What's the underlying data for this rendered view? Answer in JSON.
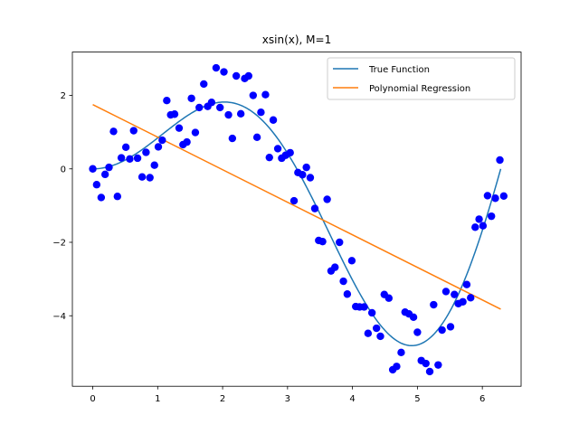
{
  "chart_data": {
    "type": "scatter",
    "title": "xsin(x), M=1",
    "xlabel": "",
    "ylabel": "",
    "xlim": [
      -0.314,
      6.597
    ],
    "ylim": [
      -5.92,
      3.18
    ],
    "xticks": [
      0,
      1,
      2,
      3,
      4,
      5,
      6
    ],
    "yticks": [
      -4,
      -2,
      0,
      2
    ],
    "grid": false,
    "legend_position": "top-right",
    "series": [
      {
        "name": "True Function",
        "type": "line",
        "color": "#1f77b4",
        "function": "x*sin(x)",
        "domain": [
          0,
          6.283
        ]
      },
      {
        "name": "Polynomial Regression",
        "type": "line",
        "color": "#ff7f0e",
        "x": [
          0,
          6.283
        ],
        "y": [
          1.75,
          -3.82
        ]
      },
      {
        "type": "scatter",
        "color": "#0000ff",
        "points": [
          [
            0.0,
            0.0
          ],
          [
            0.06,
            -0.43
          ],
          [
            0.13,
            -0.78
          ],
          [
            0.19,
            -0.15
          ],
          [
            0.25,
            0.04
          ],
          [
            0.32,
            1.02
          ],
          [
            0.38,
            -0.75
          ],
          [
            0.44,
            0.3
          ],
          [
            0.51,
            0.59
          ],
          [
            0.57,
            0.27
          ],
          [
            0.63,
            1.04
          ],
          [
            0.69,
            0.29
          ],
          [
            0.76,
            -0.22
          ],
          [
            0.82,
            0.45
          ],
          [
            0.88,
            -0.24
          ],
          [
            0.95,
            0.1
          ],
          [
            1.01,
            0.6
          ],
          [
            1.07,
            0.78
          ],
          [
            1.14,
            1.86
          ],
          [
            1.2,
            1.47
          ],
          [
            1.26,
            1.49
          ],
          [
            1.33,
            1.11
          ],
          [
            1.39,
            0.66
          ],
          [
            1.45,
            0.73
          ],
          [
            1.52,
            1.92
          ],
          [
            1.58,
            0.99
          ],
          [
            1.64,
            1.67
          ],
          [
            1.71,
            2.31
          ],
          [
            1.77,
            1.7
          ],
          [
            1.83,
            1.81
          ],
          [
            1.9,
            2.75
          ],
          [
            1.96,
            1.67
          ],
          [
            2.02,
            2.64
          ],
          [
            2.09,
            1.47
          ],
          [
            2.15,
            0.83
          ],
          [
            2.21,
            2.53
          ],
          [
            2.28,
            1.5
          ],
          [
            2.34,
            2.46
          ],
          [
            2.4,
            2.53
          ],
          [
            2.47,
            2.0
          ],
          [
            2.53,
            0.86
          ],
          [
            2.59,
            1.54
          ],
          [
            2.66,
            2.02
          ],
          [
            2.72,
            0.31
          ],
          [
            2.78,
            1.33
          ],
          [
            2.85,
            0.55
          ],
          [
            2.91,
            0.29
          ],
          [
            2.97,
            0.37
          ],
          [
            3.04,
            0.44
          ],
          [
            3.1,
            -0.87
          ],
          [
            3.16,
            -0.1
          ],
          [
            3.23,
            -0.16
          ],
          [
            3.29,
            0.04
          ],
          [
            3.35,
            -0.24
          ],
          [
            3.42,
            -1.08
          ],
          [
            3.48,
            -1.95
          ],
          [
            3.54,
            -1.98
          ],
          [
            3.61,
            -0.83
          ],
          [
            3.67,
            -2.78
          ],
          [
            3.73,
            -2.68
          ],
          [
            3.8,
            -2.0
          ],
          [
            3.86,
            -3.06
          ],
          [
            3.92,
            -3.41
          ],
          [
            3.99,
            -2.5
          ],
          [
            4.05,
            -3.75
          ],
          [
            4.11,
            -3.76
          ],
          [
            4.18,
            -3.76
          ],
          [
            4.24,
            -4.48
          ],
          [
            4.3,
            -3.92
          ],
          [
            4.37,
            -4.34
          ],
          [
            4.43,
            -4.56
          ],
          [
            4.49,
            -3.42
          ],
          [
            4.56,
            -3.52
          ],
          [
            4.62,
            -5.47
          ],
          [
            4.68,
            -5.38
          ],
          [
            4.75,
            -5.0
          ],
          [
            4.81,
            -3.9
          ],
          [
            4.87,
            -3.95
          ],
          [
            4.94,
            -4.04
          ],
          [
            5.0,
            -4.45
          ],
          [
            5.06,
            -5.22
          ],
          [
            5.13,
            -5.3
          ],
          [
            5.19,
            -5.52
          ],
          [
            5.25,
            -3.7
          ],
          [
            5.32,
            -5.34
          ],
          [
            5.38,
            -4.39
          ],
          [
            5.44,
            -3.34
          ],
          [
            5.51,
            -4.3
          ],
          [
            5.57,
            -3.42
          ],
          [
            5.63,
            -3.67
          ],
          [
            5.7,
            -3.62
          ],
          [
            5.76,
            -3.15
          ],
          [
            5.82,
            -3.51
          ],
          [
            5.89,
            -1.59
          ],
          [
            5.95,
            -1.37
          ],
          [
            6.01,
            -1.55
          ],
          [
            6.08,
            -0.73
          ],
          [
            6.14,
            -1.29
          ],
          [
            6.2,
            -0.8
          ],
          [
            6.27,
            0.24
          ],
          [
            6.33,
            -0.74
          ]
        ]
      }
    ]
  }
}
